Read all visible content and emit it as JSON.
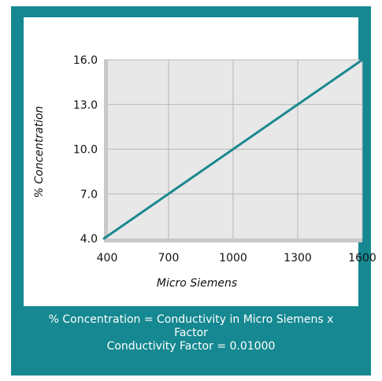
{
  "chart_data": {
    "type": "line",
    "title": "",
    "xlabel": "Micro Siemens",
    "ylabel": "% Concentration",
    "xlim": [
      400,
      1600
    ],
    "ylim": [
      4.0,
      16.0
    ],
    "x_ticks": [
      400,
      700,
      1000,
      1300,
      1600
    ],
    "x_tick_labels": [
      "400",
      "700",
      "1000",
      "1300",
      "1600"
    ],
    "y_ticks": [
      4.0,
      7.0,
      10.0,
      13.0,
      16.0
    ],
    "y_tick_labels": [
      "4.0",
      "7.0",
      "10.0",
      "13.0",
      "16.0"
    ],
    "grid": true,
    "series": [
      {
        "x": [
          400,
          1600
        ],
        "y": [
          4.0,
          16.0
        ]
      }
    ],
    "colors": {
      "line": "#1a8890",
      "plot_background": "#e8e8e8",
      "axis_shadow": "#c8c8c8",
      "grid": "#b5b5b5"
    }
  },
  "caption": {
    "line1": "% Concentration = Conductivity in Micro Siemens x Factor",
    "line2": "Conductivity Factor = 0.01000"
  }
}
